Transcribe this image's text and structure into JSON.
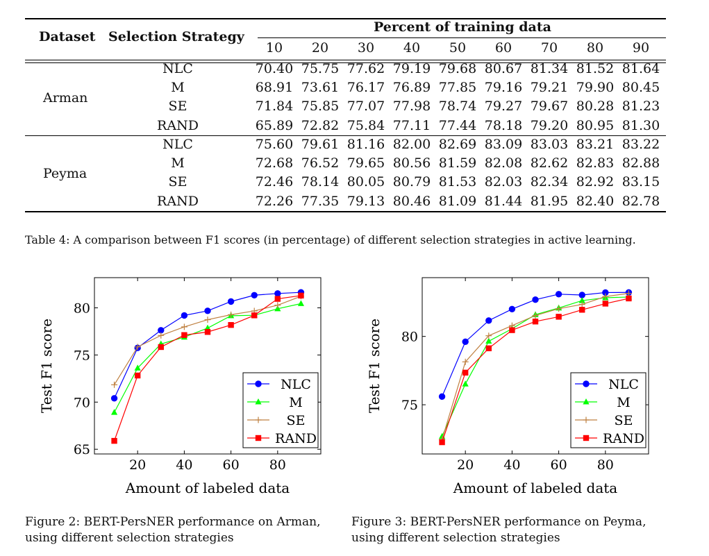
{
  "table": {
    "header": {
      "dataset": "Dataset",
      "strategy": "Selection Strategy",
      "percent": "Percent of training data",
      "columns": [
        "10",
        "20",
        "30",
        "40",
        "50",
        "60",
        "70",
        "80",
        "90"
      ]
    },
    "groups": [
      {
        "dataset": "Arman",
        "rows": [
          {
            "strategy": "NLC",
            "values": [
              "70.40",
              "75.75",
              "77.62",
              "79.19",
              "79.68",
              "80.67",
              "81.34",
              "81.52",
              "81.64"
            ]
          },
          {
            "strategy": "M",
            "values": [
              "68.91",
              "73.61",
              "76.17",
              "76.89",
              "77.85",
              "79.16",
              "79.21",
              "79.90",
              "80.45"
            ]
          },
          {
            "strategy": "SE",
            "values": [
              "71.84",
              "75.85",
              "77.07",
              "77.98",
              "78.74",
              "79.27",
              "79.67",
              "80.28",
              "81.23"
            ]
          },
          {
            "strategy": "RAND",
            "values": [
              "65.89",
              "72.82",
              "75.84",
              "77.11",
              "77.44",
              "78.18",
              "79.20",
              "80.95",
              "81.30"
            ]
          }
        ]
      },
      {
        "dataset": "Peyma",
        "rows": [
          {
            "strategy": "NLC",
            "values": [
              "75.60",
              "79.61",
              "81.16",
              "82.00",
              "82.69",
              "83.09",
              "83.03",
              "83.21",
              "83.22"
            ]
          },
          {
            "strategy": "M",
            "values": [
              "72.68",
              "76.52",
              "79.65",
              "80.56",
              "81.59",
              "82.08",
              "82.62",
              "82.83",
              "82.88"
            ]
          },
          {
            "strategy": "SE",
            "values": [
              "72.46",
              "78.14",
              "80.05",
              "80.79",
              "81.53",
              "82.03",
              "82.34",
              "82.92",
              "83.15"
            ]
          },
          {
            "strategy": "RAND",
            "values": [
              "72.26",
              "77.35",
              "79.13",
              "80.46",
              "81.09",
              "81.44",
              "81.95",
              "82.40",
              "82.78"
            ]
          }
        ]
      }
    ],
    "caption": "Table 4:  A comparison between F1 scores (in percentage) of different selection strategies in active learning."
  },
  "figures": [
    {
      "caption_line1": "Figure 2:  BERT-PersNER performance on Arman,",
      "caption_line2": "using different selection strategies"
    },
    {
      "caption_line1": "Figure 3:  BERT-PersNER performance on Peyma,",
      "caption_line2": "using different selection strategies"
    }
  ],
  "chart_data": [
    {
      "type": "line",
      "title": "",
      "xlabel": "Amount of labeled data",
      "ylabel": "Test F1 score",
      "x": [
        10,
        20,
        30,
        40,
        50,
        60,
        70,
        80,
        90
      ],
      "xlim": [
        1.5,
        98.5
      ],
      "ylim": [
        64.5,
        83.2
      ],
      "xticks": [
        20,
        40,
        60,
        80
      ],
      "yticks": [
        65,
        70,
        75,
        80
      ],
      "grid": false,
      "legend_position": "bottom-right",
      "series": [
        {
          "name": "NLC",
          "color": "#0000ff",
          "marker": "circle",
          "values": [
            70.4,
            75.75,
            77.62,
            79.19,
            79.68,
            80.67,
            81.34,
            81.52,
            81.64
          ]
        },
        {
          "name": "M",
          "color": "#00ff00",
          "marker": "triangle",
          "values": [
            68.91,
            73.61,
            76.17,
            76.89,
            77.85,
            79.16,
            79.21,
            79.9,
            80.45
          ]
        },
        {
          "name": "SE",
          "color": "#bf8040",
          "marker": "plus",
          "values": [
            71.84,
            75.85,
            77.07,
            77.98,
            78.74,
            79.27,
            79.67,
            80.28,
            81.23
          ]
        },
        {
          "name": "RAND",
          "color": "#ff0000",
          "marker": "square",
          "values": [
            65.89,
            72.82,
            75.84,
            77.11,
            77.44,
            78.18,
            79.2,
            80.95,
            81.3
          ]
        }
      ]
    },
    {
      "type": "line",
      "title": "",
      "xlabel": "Amount of labeled data",
      "ylabel": "Test F1 score",
      "x": [
        10,
        20,
        30,
        40,
        50,
        60,
        70,
        80,
        90
      ],
      "xlim": [
        1.5,
        98.5
      ],
      "ylim": [
        71.4,
        84.3
      ],
      "xticks": [
        20,
        40,
        60,
        80
      ],
      "yticks": [
        75,
        80
      ],
      "grid": false,
      "legend_position": "bottom-right",
      "series": [
        {
          "name": "NLC",
          "color": "#0000ff",
          "marker": "circle",
          "values": [
            75.6,
            79.61,
            81.16,
            82.0,
            82.69,
            83.09,
            83.03,
            83.21,
            83.22
          ]
        },
        {
          "name": "M",
          "color": "#00ff00",
          "marker": "triangle",
          "values": [
            72.68,
            76.52,
            79.65,
            80.56,
            81.59,
            82.08,
            82.62,
            82.83,
            82.88
          ]
        },
        {
          "name": "SE",
          "color": "#bf8040",
          "marker": "plus",
          "values": [
            72.46,
            78.14,
            80.05,
            80.79,
            81.53,
            82.03,
            82.34,
            82.92,
            83.15
          ]
        },
        {
          "name": "RAND",
          "color": "#ff0000",
          "marker": "square",
          "values": [
            72.26,
            77.35,
            79.13,
            80.46,
            81.09,
            81.44,
            81.95,
            82.4,
            82.78
          ]
        }
      ]
    }
  ]
}
